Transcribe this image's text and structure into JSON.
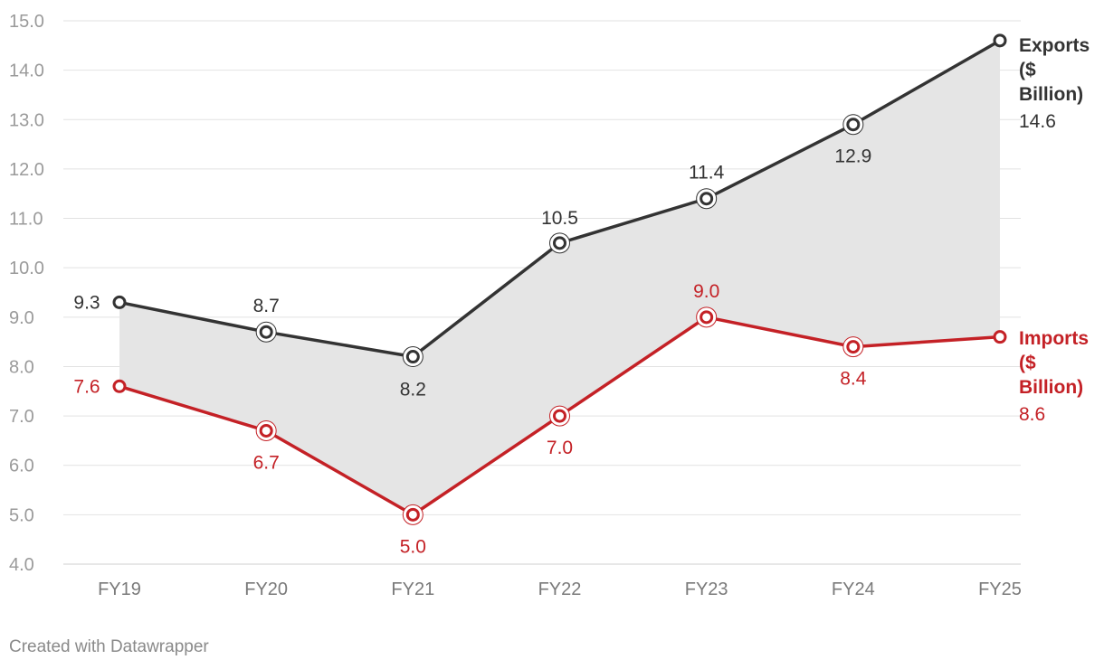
{
  "chart_data": {
    "type": "line",
    "categories": [
      "FY19",
      "FY20",
      "FY21",
      "FY22",
      "FY23",
      "FY24",
      "FY25"
    ],
    "yticks": [
      "4.0",
      "5.0",
      "6.0",
      "7.0",
      "8.0",
      "9.0",
      "10.0",
      "11.0",
      "12.0",
      "13.0",
      "14.0",
      "15.0"
    ],
    "ylim": [
      4,
      15
    ],
    "grid": true,
    "area_between_series": true,
    "series": [
      {
        "name": "Exports ($ Billion)",
        "name_lines": [
          "Exports",
          "($",
          "Billion)"
        ],
        "color": "#333333",
        "values": [
          9.3,
          8.7,
          8.2,
          10.5,
          11.4,
          12.9,
          14.6
        ],
        "labels": [
          "9.3",
          "8.7",
          "8.2",
          "10.5",
          "11.4",
          "12.9",
          "14.6"
        ]
      },
      {
        "name": "Imports ($ Billion)",
        "name_lines": [
          "Imports",
          "($",
          "Billion)"
        ],
        "color": "#c42126",
        "values": [
          7.6,
          6.7,
          5.0,
          7.0,
          9.0,
          8.4,
          8.6
        ],
        "labels": [
          "7.6",
          "6.7",
          "5.0",
          "7.0",
          "9.0",
          "8.4",
          "8.6"
        ]
      }
    ],
    "fill_color": "#e5e5e5"
  },
  "footer": {
    "credit": "Created with Datawrapper"
  }
}
